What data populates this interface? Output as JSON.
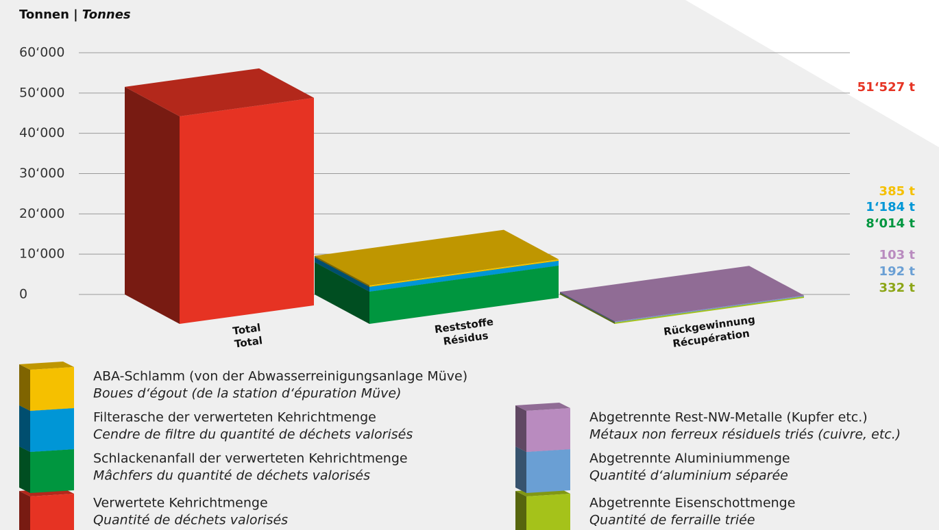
{
  "chart_data": {
    "type": "bar3d",
    "y_label": [
      "Tonnen |",
      "Tonnes"
    ],
    "categories": [
      [
        "Total",
        "Total"
      ],
      [
        "Reststoffe",
        "Résidus"
      ],
      [
        "Rückgewinnung",
        "Récupération"
      ]
    ],
    "ylim": [
      0,
      60000
    ],
    "yticks": [
      0,
      {
        "value": 10000,
        "label": "10‘000"
      },
      {
        "value": 20000,
        "label": "20‘000"
      },
      {
        "value": 30000,
        "label": "30‘000"
      },
      {
        "value": 40000,
        "label": "40‘000"
      },
      {
        "value": 50000,
        "label": "50‘000"
      },
      {
        "value": 60000,
        "label": "60‘000"
      }
    ],
    "grid": true,
    "stacked": true,
    "series": [
      {
        "name": "Verwertete Kehrichtmenge",
        "name_fr": "Quantité de déchets valorisés",
        "color": "#e63323",
        "values": [
          51527,
          null,
          null
        ],
        "value_labels": [
          "51‘527 t",
          null,
          null
        ]
      },
      {
        "name": "Schlackenanfall der verwerteten Kehrichtmenge",
        "name_fr": "Mâchfers du quantité de déchets valorisés",
        "color": "#00963f",
        "values": [
          null,
          8014,
          null
        ],
        "value_labels": [
          null,
          "8‘014 t",
          null
        ]
      },
      {
        "name": "Filterasche der verwerteten Kehrichtmenge",
        "name_fr": "Cendre de filtre du quantité de déchets valorisés",
        "color": "#0096d6",
        "values": [
          null,
          1184,
          null
        ],
        "value_labels": [
          null,
          "1‘184 t",
          null
        ]
      },
      {
        "name": "ABA-Schlamm (von der Abwasserreinigungsanlage Müve)",
        "name_fr": "Boues d‘égout (de la station d‘épuration Müve)",
        "color": "#f5c000",
        "values": [
          null,
          385,
          null
        ],
        "value_labels": [
          null,
          "385 t",
          null
        ]
      },
      {
        "name": "Abgetrennte Eisenschottmenge",
        "name_fr": "Quantité de ferraille triée",
        "color": "#a5c21a",
        "values": [
          null,
          null,
          332
        ],
        "value_labels": [
          null,
          null,
          "332 t"
        ]
      },
      {
        "name": "Abgetrennte Aluminiummenge",
        "name_fr": "Quantité d‘aluminium séparée",
        "color": "#6a9fd4",
        "values": [
          null,
          null,
          192
        ],
        "value_labels": [
          null,
          null,
          "192 t"
        ]
      },
      {
        "name": "Abgetrennte Rest-NW-Metalle (Kupfer etc.)",
        "name_fr": "Métaux non ferreux résiduels triés (cuivre, etc.)",
        "color": "#b98bbf",
        "values": [
          null,
          null,
          103
        ],
        "value_labels": [
          null,
          null,
          "103 t"
        ]
      }
    ]
  }
}
